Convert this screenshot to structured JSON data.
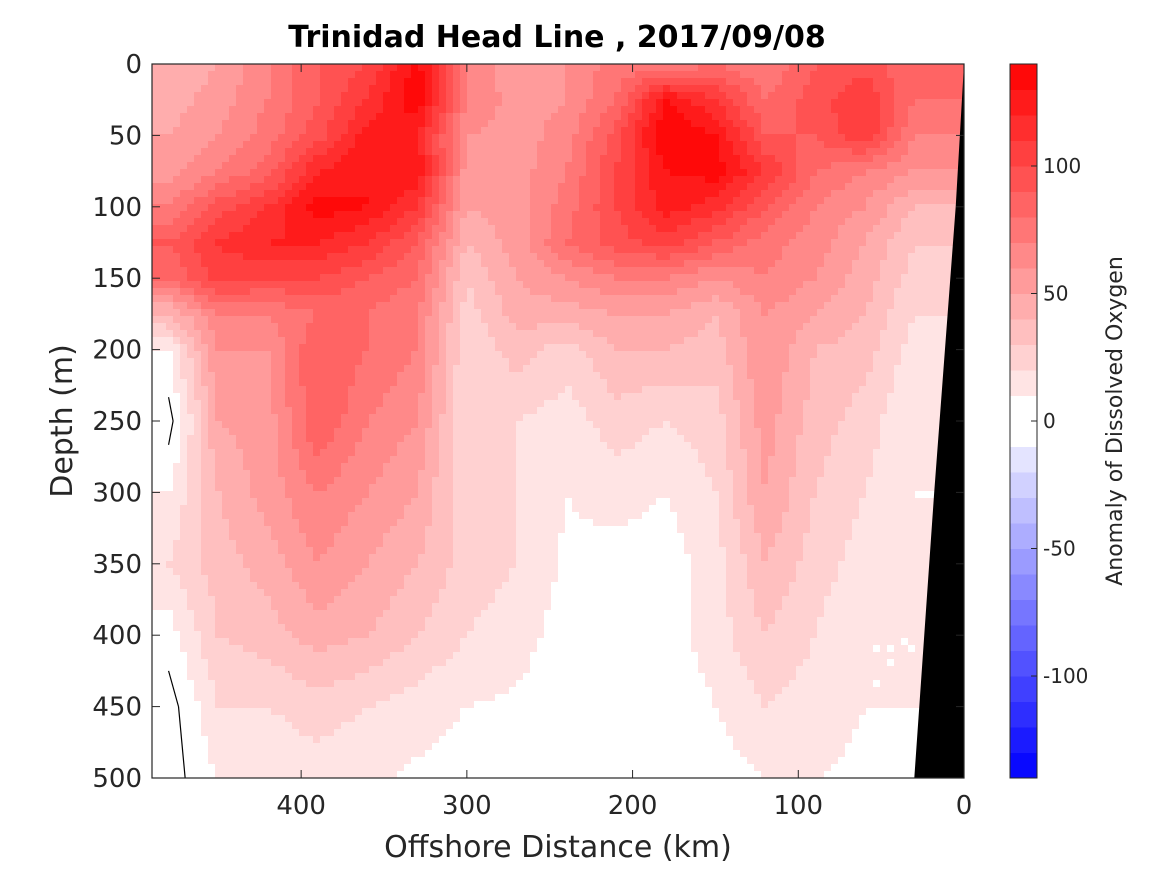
{
  "chart_data": {
    "type": "heatmap",
    "title": "Trinidad Head Line , 2017/09/08",
    "xlabel": "Offshore Distance (km)",
    "ylabel": "Depth (m)",
    "colorbar_label": "Anomaly of Dissolved Oxygen",
    "xlim": [
      490,
      0
    ],
    "ylim": [
      0,
      500
    ],
    "y_reversed": true,
    "x_reversed": true,
    "xticks": [
      400,
      300,
      200,
      100,
      0
    ],
    "yticks": [
      0,
      50,
      100,
      150,
      200,
      250,
      300,
      350,
      400,
      450,
      500
    ],
    "colorbar": {
      "range": [
        -140,
        140
      ],
      "step": 10,
      "ticks": [
        100,
        50,
        0,
        -50,
        -100
      ],
      "colormap": "blue-white-red"
    },
    "zero_contour_color": "#000000",
    "seafloor_color": "#000000",
    "x": [
      480,
      450,
      420,
      390,
      360,
      330,
      300,
      270,
      240,
      210,
      180,
      150,
      120,
      90,
      60,
      30
    ],
    "y": [
      0,
      25,
      50,
      75,
      100,
      125,
      150,
      175,
      200,
      250,
      300,
      350,
      400,
      450,
      500
    ],
    "z": [
      [
        40,
        50,
        70,
        90,
        100,
        135,
        70,
        50,
        60,
        75,
        70,
        80,
        70,
        90,
        95,
        80
      ],
      [
        45,
        55,
        70,
        90,
        110,
        140,
        70,
        55,
        60,
        80,
        130,
        110,
        80,
        95,
        110,
        80
      ],
      [
        50,
        60,
        75,
        95,
        125,
        120,
        60,
        55,
        65,
        95,
        140,
        130,
        90,
        90,
        110,
        70
      ],
      [
        55,
        70,
        85,
        120,
        130,
        130,
        55,
        55,
        70,
        100,
        130,
        135,
        110,
        80,
        70,
        60
      ],
      [
        70,
        95,
        110,
        135,
        130,
        110,
        50,
        55,
        75,
        100,
        125,
        115,
        90,
        70,
        60,
        40
      ],
      [
        90,
        110,
        120,
        120,
        110,
        90,
        40,
        55,
        80,
        95,
        105,
        90,
        75,
        65,
        50,
        30
      ],
      [
        80,
        105,
        100,
        100,
        90,
        80,
        30,
        50,
        60,
        70,
        70,
        60,
        70,
        60,
        45,
        25
      ],
      [
        40,
        70,
        70,
        80,
        80,
        70,
        25,
        45,
        45,
        50,
        50,
        40,
        60,
        50,
        40,
        20
      ],
      [
        10,
        60,
        60,
        90,
        80,
        70,
        20,
        35,
        25,
        40,
        40,
        35,
        60,
        40,
        35,
        15
      ],
      [
        -5,
        50,
        55,
        90,
        70,
        60,
        20,
        20,
        15,
        25,
        20,
        25,
        55,
        35,
        25,
        10
      ],
      [
        10,
        40,
        55,
        70,
        60,
        50,
        20,
        20,
        10,
        15,
        10,
        20,
        50,
        30,
        20,
        10
      ],
      [
        20,
        35,
        45,
        60,
        50,
        40,
        25,
        20,
        8,
        5,
        5,
        15,
        40,
        25,
        15,
        10
      ],
      [
        5,
        30,
        35,
        45,
        40,
        30,
        20,
        15,
        5,
        2,
        5,
        15,
        30,
        20,
        10,
        10
      ],
      [
        -5,
        20,
        20,
        25,
        20,
        15,
        10,
        8,
        2,
        1,
        2,
        10,
        20,
        15,
        10,
        10
      ],
      [
        -5,
        10,
        12,
        15,
        12,
        8,
        5,
        3,
        1,
        1,
        1,
        5,
        10,
        10,
        8,
        8
      ]
    ]
  }
}
